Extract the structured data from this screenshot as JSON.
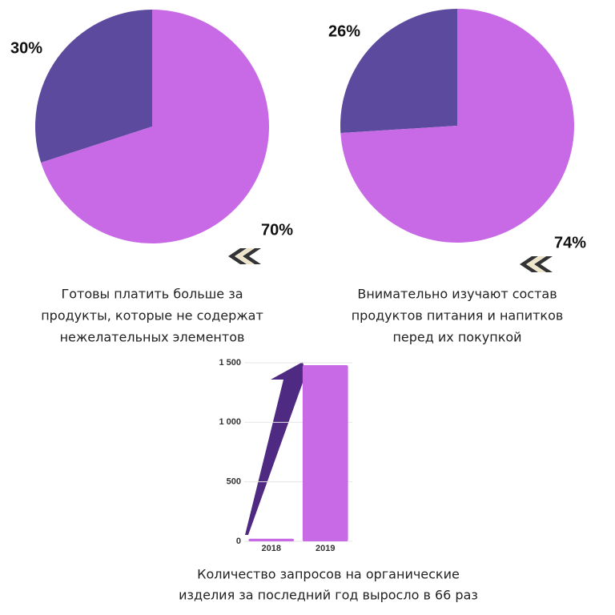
{
  "chart_data": [
    {
      "type": "pie",
      "categories": [
        null,
        null
      ],
      "values": [
        30,
        70
      ],
      "value_labels": [
        "30%",
        "70%"
      ],
      "colors": [
        "#5c4a9e",
        "#c86ae6"
      ],
      "caption": [
        "Готовы платить больше за",
        "продукты, которые не содержат",
        "нежелательных элементов"
      ]
    },
    {
      "type": "pie",
      "categories": [
        null,
        null
      ],
      "values": [
        26,
        74
      ],
      "value_labels": [
        "26%",
        "74%"
      ],
      "colors": [
        "#5c4a9e",
        "#c86ae6"
      ],
      "caption": [
        "Внимательно изучают состав",
        "продуктов питания и напитков",
        "перед их покупкой"
      ]
    },
    {
      "type": "bar",
      "categories": [
        "2018",
        "2019"
      ],
      "values": [
        22,
        1480
      ],
      "color": "#c86ae6",
      "ylim": [
        0,
        1500
      ],
      "yticks": [
        0,
        500,
        {
          "value": 1000,
          "label": "1 000"
        },
        {
          "value": 1500,
          "label": "1 500"
        }
      ],
      "grid": true,
      "caption": [
        "Количество запросов на органические",
        "изделия за последний год выросло в 66 раз"
      ]
    }
  ]
}
